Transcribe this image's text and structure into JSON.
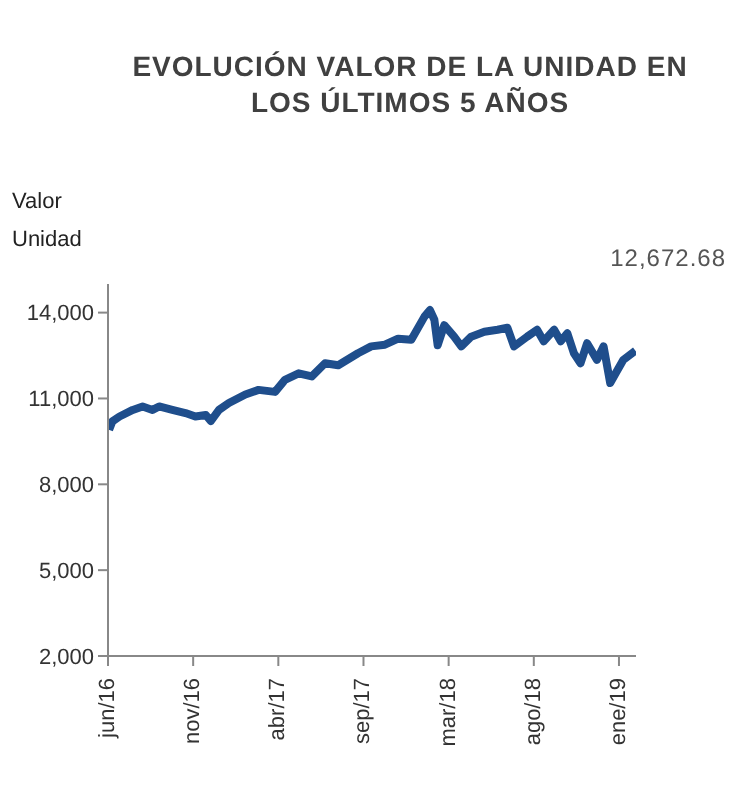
{
  "chart_data": {
    "type": "line",
    "title": "EVOLUCIÓN VALOR DE LA UNIDAD EN LOS ÚLTIMOS 5 AÑOS",
    "ylabel": "Valor Unidad",
    "annotations": [
      "12,672.68"
    ],
    "x": [
      "2016-06-22",
      "2016-06-28",
      "2016-07-11",
      "2016-08-04",
      "2016-08-22",
      "2016-09-09",
      "2016-09-21",
      "2016-10-15",
      "2016-11-08",
      "2016-11-26",
      "2016-12-15",
      "2016-12-24",
      "2017-01-08",
      "2017-01-26",
      "2017-02-25",
      "2017-03-21",
      "2017-04-20",
      "2017-05-08",
      "2017-06-02",
      "2017-06-26",
      "2017-07-20",
      "2017-08-13",
      "2017-09-18",
      "2017-10-12",
      "2017-11-06",
      "2017-11-30",
      "2017-12-24",
      "2018-01-17",
      "2018-01-27",
      "2018-02-04",
      "2018-02-10",
      "2018-02-22",
      "2018-03-12",
      "2018-03-25",
      "2018-04-12",
      "2018-05-06",
      "2018-05-30",
      "2018-06-17",
      "2018-06-29",
      "2018-07-23",
      "2018-08-10",
      "2018-08-22",
      "2018-09-10",
      "2018-09-22",
      "2018-10-04",
      "2018-10-16",
      "2018-10-28",
      "2018-11-09",
      "2018-11-27",
      "2018-12-09",
      "2018-12-21",
      "2018-12-31",
      "2019-01-14",
      "2019-02-05"
    ],
    "series": [
      {
        "color": "#1f4e8c",
        "values": [
          9900,
          10200,
          10370,
          10600,
          10720,
          10600,
          10720,
          10600,
          10490,
          10370,
          10420,
          10210,
          10600,
          10840,
          11140,
          11300,
          11230,
          11650,
          11880,
          11770,
          12230,
          12160,
          12580,
          12820,
          12880,
          13090,
          13050,
          13860,
          14090,
          13750,
          12860,
          13560,
          13160,
          12820,
          13160,
          13330,
          13400,
          13470,
          12820,
          13160,
          13400,
          13000,
          13400,
          13000,
          13280,
          12580,
          12230,
          12930,
          12350,
          12820,
          11540,
          11880,
          12350,
          12670
        ]
      }
    ],
    "xlim": [
      "2016-06-20",
      "2019-02-06"
    ],
    "xticks": [
      {
        "value": "2016-06-20",
        "label": "jun/16"
      },
      {
        "value": "2016-11-22",
        "label": "nov/16"
      },
      {
        "value": "2017-04-26",
        "label": "abr/17"
      },
      {
        "value": "2017-09-28",
        "label": "sep/17"
      },
      {
        "value": "2018-03-02",
        "label": "mar/18"
      },
      {
        "value": "2018-08-04",
        "label": "ago/18"
      },
      {
        "value": "2019-01-06",
        "label": "ene/19"
      }
    ],
    "ylim": [
      2000,
      15000
    ],
    "yticks": [
      {
        "value": 2000,
        "label": "2,000"
      },
      {
        "value": 5000,
        "label": "5,000"
      },
      {
        "value": 8000,
        "label": "8,000"
      },
      {
        "value": 11000,
        "label": "11,000"
      },
      {
        "value": 14000,
        "label": "14,000"
      }
    ],
    "grid": false,
    "legend": false,
    "marker": "none",
    "line_style": "solid"
  }
}
